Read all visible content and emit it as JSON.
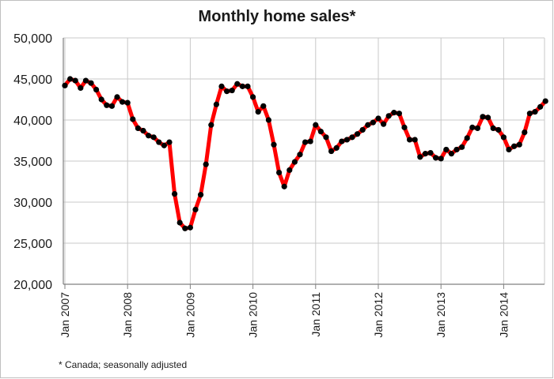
{
  "title": "Monthly home sales*",
  "footnote": "* Canada; seasonally adjusted",
  "colors": {
    "line": "#ff0000",
    "marker": "#000000",
    "grid": "#c8c8c8",
    "axis": "#808080"
  },
  "chart_data": {
    "type": "line",
    "title": "Monthly home sales*",
    "xlabel": "",
    "ylabel": "",
    "ylim": [
      20000,
      50000
    ],
    "yticks": [
      20000,
      25000,
      30000,
      35000,
      40000,
      45000,
      50000
    ],
    "ytick_labels": [
      "20,000",
      "25,000",
      "30,000",
      "35,000",
      "40,000",
      "45,000",
      "50,000"
    ],
    "xtick_labels": [
      "Jan 2007",
      "Jan 2008",
      "Jan 2009",
      "Jan 2010",
      "Jan 2011",
      "Jan 2012",
      "Jan 2013",
      "Jan 2014"
    ],
    "grid": true,
    "x_start": "Jan 2007",
    "x_frequency": "monthly",
    "values": [
      44200,
      45000,
      44800,
      43900,
      44800,
      44500,
      43700,
      42500,
      41800,
      41700,
      42800,
      42200,
      42100,
      40100,
      39000,
      38700,
      38100,
      37900,
      37300,
      36900,
      37300,
      31000,
      27500,
      26800,
      26900,
      29100,
      30900,
      34600,
      39400,
      41900,
      44100,
      43500,
      43600,
      44400,
      44100,
      44100,
      42800,
      41000,
      41700,
      40000,
      37000,
      33600,
      31900,
      33900,
      34900,
      35800,
      37300,
      37400,
      39400,
      38600,
      37900,
      36200,
      36600,
      37400,
      37600,
      37900,
      38300,
      38800,
      39400,
      39700,
      40200,
      39500,
      40500,
      40900,
      40800,
      39100,
      37600,
      37600,
      35500,
      35900,
      36000,
      35400,
      35300,
      36400,
      35900,
      36400,
      36700,
      37800,
      39100,
      39000,
      40400,
      40300,
      39000,
      38800,
      37900,
      36400,
      36800,
      37000,
      38500,
      40800,
      41000,
      41600,
      42300
    ]
  }
}
